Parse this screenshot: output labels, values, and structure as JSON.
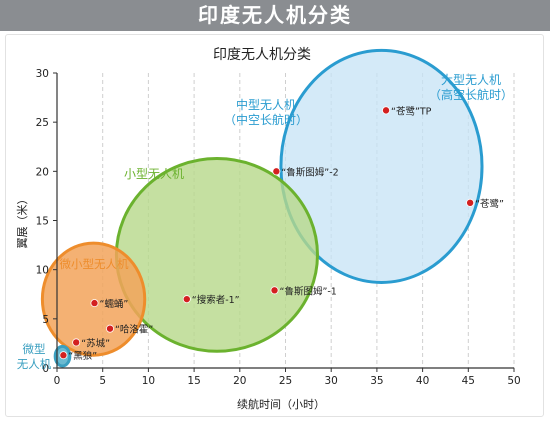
{
  "banner": {
    "title": "印度无人机分类"
  },
  "chart_data": {
    "type": "bubble",
    "title": "印度无人机分类",
    "xlabel": "续航时间（小时）",
    "ylabel": "翼展（米）",
    "xlim": [
      0,
      50
    ],
    "ylim": [
      0,
      30
    ],
    "x_ticks": [
      0,
      5,
      10,
      15,
      20,
      25,
      30,
      35,
      40,
      45,
      50
    ],
    "y_ticks": [
      0,
      5,
      10,
      15,
      20,
      25,
      30
    ],
    "grid": {
      "vertical_dashed": true,
      "horizontal": false
    },
    "categories": [
      {
        "name_lines": [
          "微型",
          "无人机"
        ],
        "color": "#3a9fc0",
        "fill": "#5bb3cc",
        "center": [
          0.6,
          1.2
        ],
        "radius_x": 0.8,
        "radius_y": 1.0
      },
      {
        "name_lines": [
          "微小型无人机"
        ],
        "color": "#ee8d2c",
        "fill": "#f2a35a",
        "center": [
          4.0,
          7.0
        ],
        "radius_x": 5.6,
        "radius_y": 5.7
      },
      {
        "name_lines": [
          "小型无人机"
        ],
        "color": "#6bb22e",
        "fill": "#b7d88a",
        "center": [
          17.5,
          11.5
        ],
        "radius_x": 11.0,
        "radius_y": 9.8
      },
      {
        "name_lines": [
          "中型无人机",
          "（中空长航时）"
        ],
        "color": "#2a9cd0",
        "fill": "#c6e3f5",
        "center": [
          35.5,
          20.5
        ],
        "radius_x": 11.0,
        "radius_y": 11.8
      },
      {
        "name_lines": [
          "大型无人机",
          "（高空长航时）"
        ],
        "color": "#2a9cd0",
        "fill": "#c6e3f5",
        "center": [
          35.5,
          20.5
        ],
        "radius_x": 11.0,
        "radius_y": 11.8
      }
    ],
    "points": [
      {
        "label": "“黑狼”",
        "x": 0.7,
        "y": 1.3
      },
      {
        "label": "“苏城”",
        "x": 2.1,
        "y": 2.6
      },
      {
        "label": "“哈洛霍”",
        "x": 5.8,
        "y": 4.0
      },
      {
        "label": "“蠕蛹”",
        "x": 4.1,
        "y": 6.6
      },
      {
        "label": "“搜索者-1”",
        "x": 14.2,
        "y": 7.0
      },
      {
        "label": "“鲁斯图姆”-1",
        "x": 23.8,
        "y": 7.9
      },
      {
        "label": "“鲁斯图姆”-2",
        "x": 24.0,
        "y": 20.0
      },
      {
        "label": "“苍鹭”TP",
        "x": 36.0,
        "y": 26.2
      },
      {
        "label": "“苍鹭”",
        "x": 45.2,
        "y": 16.8
      }
    ],
    "point_color": "#d32020"
  }
}
